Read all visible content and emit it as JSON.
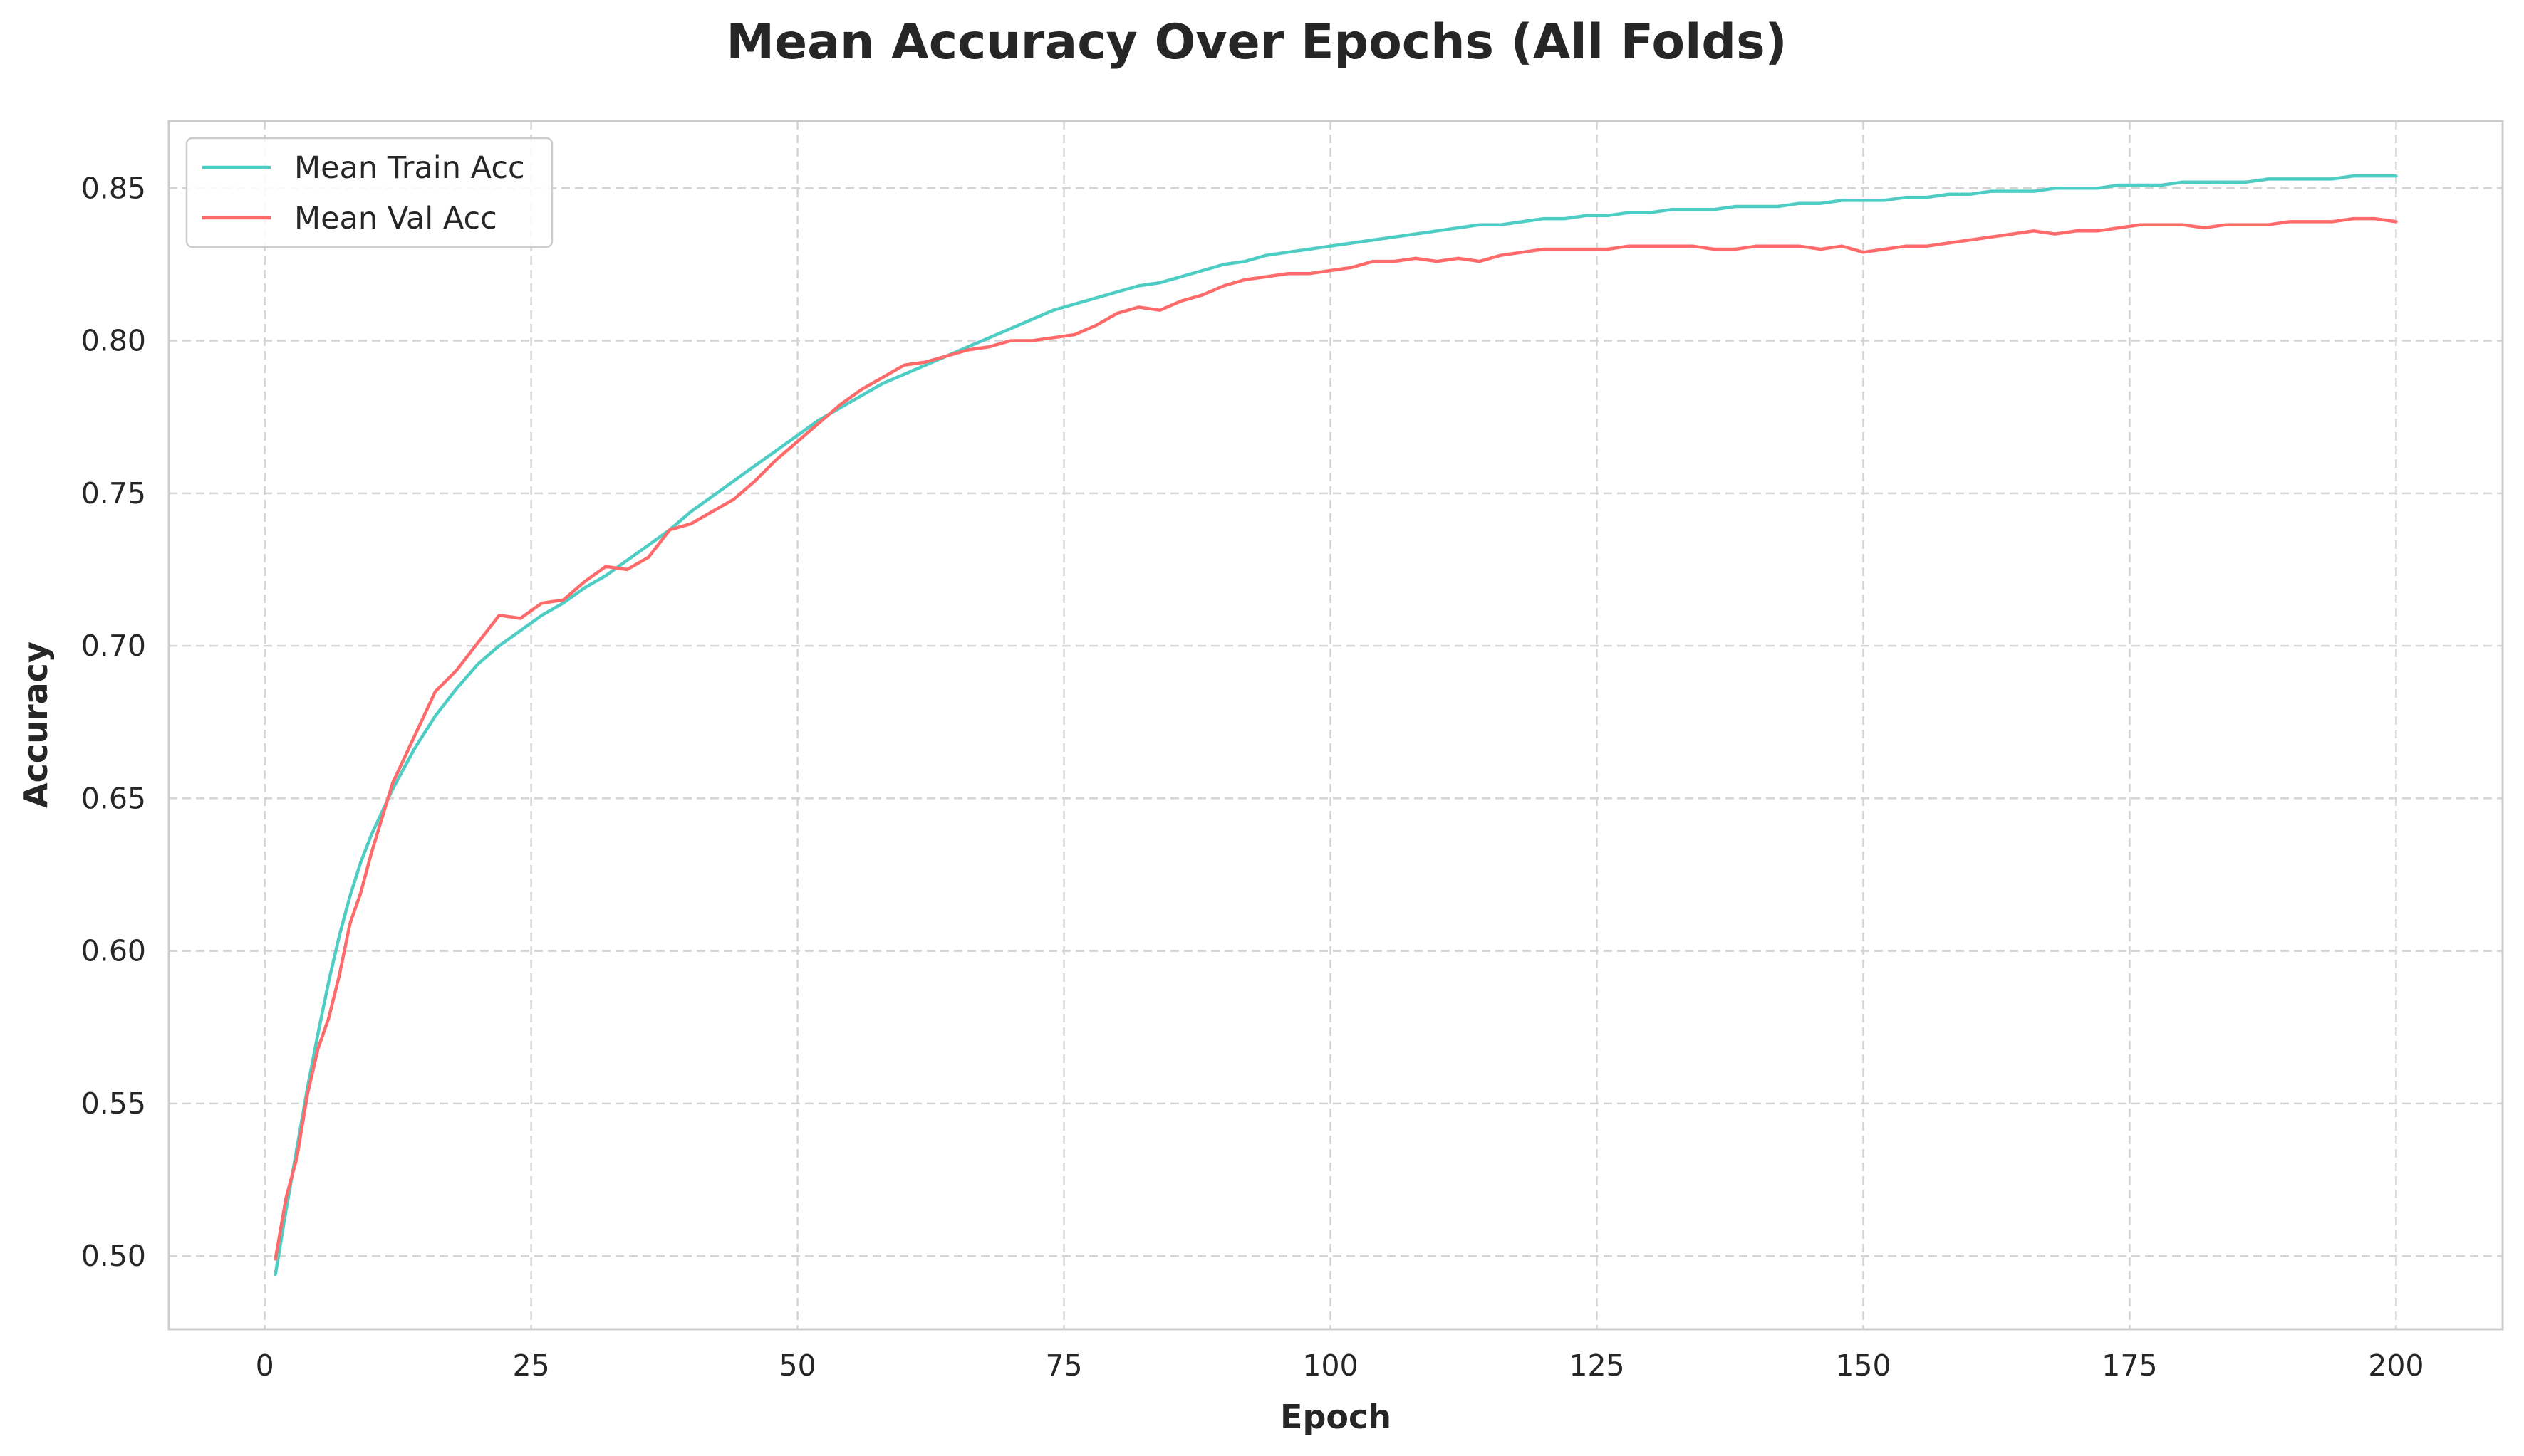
{
  "chart_data": {
    "type": "line",
    "title": "Mean Accuracy Over Epochs (All Folds)",
    "xlabel": "Epoch",
    "ylabel": "Accuracy",
    "xlim": [
      -9,
      210
    ],
    "ylim": [
      0.476,
      0.872
    ],
    "xticks": [
      0,
      25,
      50,
      75,
      100,
      125,
      150,
      175,
      200
    ],
    "yticks": [
      0.5,
      0.55,
      0.6,
      0.65,
      0.7,
      0.75,
      0.8,
      0.85
    ],
    "grid": true,
    "grid_style": "dashed",
    "legend_position": "top-left",
    "x": [
      1,
      2,
      3,
      4,
      5,
      6,
      7,
      8,
      9,
      10,
      12,
      14,
      16,
      18,
      20,
      22,
      24,
      26,
      28,
      30,
      32,
      34,
      36,
      38,
      40,
      42,
      44,
      46,
      48,
      50,
      52,
      54,
      56,
      58,
      60,
      62,
      64,
      66,
      68,
      70,
      72,
      74,
      76,
      78,
      80,
      82,
      84,
      86,
      88,
      90,
      92,
      94,
      96,
      98,
      100,
      102,
      104,
      106,
      108,
      110,
      112,
      114,
      116,
      118,
      120,
      122,
      124,
      126,
      128,
      130,
      132,
      134,
      136,
      138,
      140,
      142,
      144,
      146,
      148,
      150,
      152,
      154,
      156,
      158,
      160,
      162,
      164,
      166,
      168,
      170,
      172,
      174,
      176,
      178,
      180,
      182,
      184,
      186,
      188,
      190,
      192,
      194,
      196,
      198,
      200
    ],
    "series": [
      {
        "name": "Mean Train Acc",
        "color": "#4ecdc4",
        "values": [
          0.494,
          0.515,
          0.535,
          0.555,
          0.573,
          0.59,
          0.605,
          0.618,
          0.629,
          0.638,
          0.653,
          0.666,
          0.677,
          0.686,
          0.694,
          0.7,
          0.705,
          0.71,
          0.714,
          0.719,
          0.723,
          0.728,
          0.733,
          0.738,
          0.744,
          0.749,
          0.754,
          0.759,
          0.764,
          0.769,
          0.774,
          0.778,
          0.782,
          0.786,
          0.789,
          0.792,
          0.795,
          0.798,
          0.801,
          0.804,
          0.807,
          0.81,
          0.812,
          0.814,
          0.816,
          0.818,
          0.819,
          0.821,
          0.823,
          0.825,
          0.826,
          0.828,
          0.829,
          0.83,
          0.831,
          0.832,
          0.833,
          0.834,
          0.835,
          0.836,
          0.837,
          0.838,
          0.838,
          0.839,
          0.84,
          0.84,
          0.841,
          0.841,
          0.842,
          0.842,
          0.843,
          0.843,
          0.843,
          0.844,
          0.844,
          0.844,
          0.845,
          0.845,
          0.846,
          0.846,
          0.846,
          0.847,
          0.847,
          0.848,
          0.848,
          0.849,
          0.849,
          0.849,
          0.85,
          0.85,
          0.85,
          0.851,
          0.851,
          0.851,
          0.852,
          0.852,
          0.852,
          0.852,
          0.853,
          0.853,
          0.853,
          0.853,
          0.854,
          0.854,
          0.854
        ]
      },
      {
        "name": "Mean Val Acc",
        "color": "#ff6b6b",
        "values": [
          0.499,
          0.519,
          0.532,
          0.553,
          0.568,
          0.578,
          0.592,
          0.609,
          0.619,
          0.632,
          0.655,
          0.67,
          0.685,
          0.692,
          0.701,
          0.71,
          0.709,
          0.714,
          0.715,
          0.721,
          0.726,
          0.725,
          0.729,
          0.738,
          0.74,
          0.744,
          0.748,
          0.754,
          0.761,
          0.767,
          0.773,
          0.779,
          0.784,
          0.788,
          0.792,
          0.793,
          0.795,
          0.797,
          0.798,
          0.8,
          0.8,
          0.801,
          0.802,
          0.805,
          0.809,
          0.811,
          0.81,
          0.813,
          0.815,
          0.818,
          0.82,
          0.821,
          0.822,
          0.822,
          0.823,
          0.824,
          0.826,
          0.826,
          0.827,
          0.826,
          0.827,
          0.826,
          0.828,
          0.829,
          0.83,
          0.83,
          0.83,
          0.83,
          0.831,
          0.831,
          0.831,
          0.831,
          0.83,
          0.83,
          0.831,
          0.831,
          0.831,
          0.83,
          0.831,
          0.829,
          0.83,
          0.831,
          0.831,
          0.832,
          0.833,
          0.834,
          0.835,
          0.836,
          0.835,
          0.836,
          0.836,
          0.837,
          0.838,
          0.838,
          0.838,
          0.837,
          0.838,
          0.838,
          0.838,
          0.839,
          0.839,
          0.839,
          0.84,
          0.84,
          0.839
        ]
      }
    ]
  }
}
